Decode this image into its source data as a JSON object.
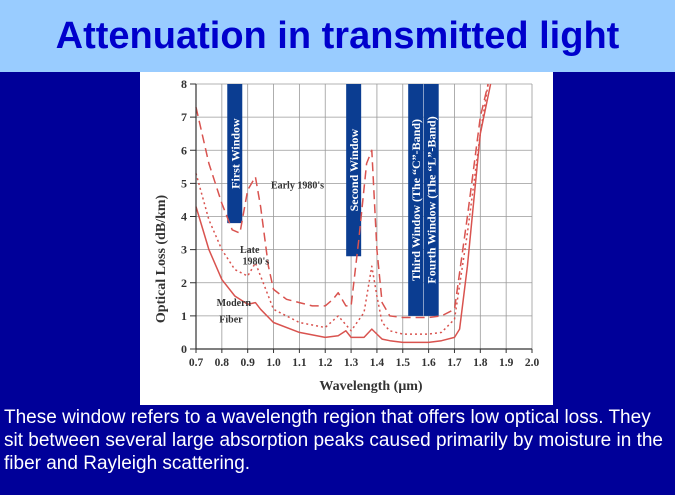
{
  "slide": {
    "title": "Attenuation in transmitted light",
    "caption": "These window refers to a wavelength region that offers low optical loss. They sit between several large absorption peaks caused primarily by moisture in the fiber and Rayleigh scattering.",
    "background_color": "#000099",
    "title_bar_color": "#99ccff",
    "title_color": "#0000cc"
  },
  "chart_data": {
    "type": "line",
    "xlabel": "Wavelength (μm)",
    "ylabel": "Optical Loss (dB/km)",
    "xlim": [
      0.7,
      2.0
    ],
    "ylim": [
      0,
      8
    ],
    "x_ticks": [
      0.7,
      0.8,
      0.9,
      1.0,
      1.1,
      1.2,
      1.3,
      1.4,
      1.5,
      1.6,
      1.7,
      1.8,
      1.9,
      2.0
    ],
    "x_tick_labels": [
      "0.7",
      "0.8",
      "0.9",
      "1.0",
      "1.1",
      "1.2",
      "1.3",
      "1.4",
      "1.5",
      "1.6",
      "1.7",
      "1.8",
      "1.9",
      "2.0"
    ],
    "y_ticks": [
      0,
      1,
      2,
      3,
      4,
      5,
      6,
      7,
      8
    ],
    "y_tick_labels": [
      "0",
      "1",
      "2",
      "3",
      "4",
      "5",
      "6",
      "7",
      "8"
    ],
    "grid": true,
    "line_color": "#d9534f",
    "window_color": "#0b3d91",
    "series": [
      {
        "name": "Early 1980's",
        "style": "dashed",
        "x": [
          0.7,
          0.75,
          0.8,
          0.84,
          0.87,
          0.9,
          0.93,
          0.95,
          0.98,
          1.0,
          1.05,
          1.1,
          1.15,
          1.2,
          1.23,
          1.25,
          1.28,
          1.3,
          1.33,
          1.36,
          1.38,
          1.4,
          1.42,
          1.45,
          1.5,
          1.55,
          1.6,
          1.65,
          1.7,
          1.75,
          1.8,
          1.83
        ],
        "y": [
          7.3,
          5.6,
          4.4,
          3.6,
          3.5,
          4.8,
          5.2,
          4.3,
          2.5,
          1.8,
          1.5,
          1.4,
          1.3,
          1.3,
          1.5,
          1.7,
          1.3,
          1.3,
          3.3,
          5.6,
          6.0,
          3.0,
          1.4,
          1.0,
          0.95,
          0.95,
          0.95,
          1.0,
          1.2,
          4.0,
          7.0,
          8.0
        ]
      },
      {
        "name": "Late 1980's",
        "style": "dotted",
        "x": [
          0.7,
          0.75,
          0.8,
          0.85,
          0.9,
          0.93,
          0.95,
          1.0,
          1.1,
          1.2,
          1.25,
          1.3,
          1.35,
          1.38,
          1.4,
          1.42,
          1.45,
          1.5,
          1.55,
          1.6,
          1.65,
          1.7,
          1.75,
          1.8,
          1.83
        ],
        "y": [
          5.3,
          3.9,
          3.0,
          2.4,
          2.2,
          2.6,
          2.2,
          1.2,
          0.8,
          0.65,
          1.0,
          0.55,
          1.1,
          2.5,
          1.6,
          0.8,
          0.55,
          0.45,
          0.45,
          0.45,
          0.5,
          0.9,
          3.5,
          6.5,
          8.0
        ]
      },
      {
        "name": "Modern Fiber",
        "style": "solid",
        "x": [
          0.7,
          0.75,
          0.8,
          0.85,
          0.9,
          0.93,
          0.95,
          1.0,
          1.1,
          1.2,
          1.25,
          1.28,
          1.3,
          1.35,
          1.38,
          1.4,
          1.42,
          1.45,
          1.5,
          1.55,
          1.6,
          1.65,
          1.7,
          1.72,
          1.75,
          1.8,
          1.84
        ],
        "y": [
          4.3,
          3.0,
          2.1,
          1.6,
          1.35,
          1.4,
          1.2,
          0.8,
          0.5,
          0.35,
          0.4,
          0.55,
          0.35,
          0.35,
          0.6,
          0.45,
          0.3,
          0.25,
          0.2,
          0.2,
          0.2,
          0.25,
          0.35,
          0.6,
          2.5,
          6.5,
          8.0
        ]
      }
    ],
    "windows": [
      {
        "label": "First Window",
        "x_center": 0.85,
        "y_bottom": 3.8,
        "y_top": 8.0
      },
      {
        "label": "Second Window",
        "x_center": 1.31,
        "y_bottom": 2.8,
        "y_top": 8.0
      },
      {
        "label": "Third Window (The “C”-Band)",
        "x_center": 1.55,
        "y_bottom": 1.0,
        "y_top": 8.0
      },
      {
        "label": "Fourth Window (The “L”-Band)",
        "x_center": 1.61,
        "y_bottom": 1.0,
        "y_top": 8.0
      }
    ],
    "annotations": [
      {
        "text": "Early 1980's",
        "x": 0.99,
        "y": 4.85
      },
      {
        "text": "Late",
        "x": 0.87,
        "y": 2.9
      },
      {
        "text": "1980's",
        "x": 0.88,
        "y": 2.55
      },
      {
        "text": "Modern",
        "x": 0.78,
        "y": 1.3
      },
      {
        "text": "Fiber",
        "x": 0.79,
        "y": 0.8
      }
    ]
  }
}
